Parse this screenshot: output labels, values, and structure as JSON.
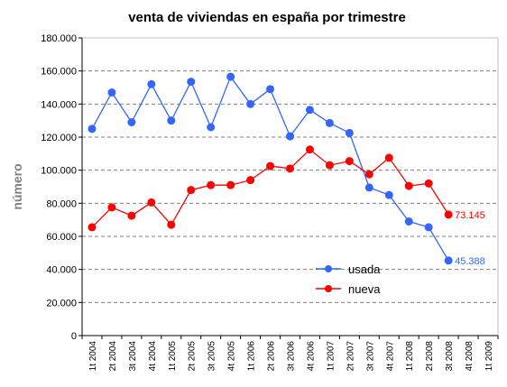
{
  "chart_data": {
    "type": "line",
    "title": "venta de viviendas en españa por trimestre",
    "xlabel": "",
    "ylabel": "número",
    "ylim": [
      0,
      180000
    ],
    "y_ticks": [
      "0",
      "20.000",
      "40.000",
      "60.000",
      "80.000",
      "100.000",
      "120.000",
      "140.000",
      "160.000",
      "180.000"
    ],
    "y_tick_values": [
      0,
      20000,
      40000,
      60000,
      80000,
      100000,
      120000,
      140000,
      160000,
      180000
    ],
    "grid": "horizontal dashed",
    "legend_position": "lower-center",
    "categories": [
      "1t 2004",
      "2t 2004",
      "3t 2004",
      "4t 2004",
      "1t 2005",
      "2t 2005",
      "3t 2005",
      "4t 2005",
      "1t 2006",
      "2t 2006",
      "3t 2006",
      "4t 2006",
      "1t 2007",
      "2t 2007",
      "3t 2007",
      "4t 2007",
      "1t 2008",
      "2t 2008",
      "3t 2008",
      "4t 2008",
      "1t 2009"
    ],
    "series": [
      {
        "name": "usada",
        "color": "#3366ff",
        "values": [
          125000,
          147000,
          129000,
          152000,
          130000,
          153500,
          126000,
          156500,
          140000,
          149000,
          120500,
          136500,
          128500,
          122500,
          89500,
          85000,
          69000,
          65500,
          45388,
          null,
          null
        ],
        "end_label": "45.388"
      },
      {
        "name": "nueva",
        "color": "#ff0000",
        "values": [
          65500,
          77500,
          72500,
          80500,
          67000,
          88000,
          91000,
          91000,
          94000,
          102500,
          101000,
          112500,
          103000,
          105500,
          97500,
          107500,
          90500,
          92000,
          73145,
          null,
          null
        ],
        "end_label": "73.145"
      }
    ]
  }
}
